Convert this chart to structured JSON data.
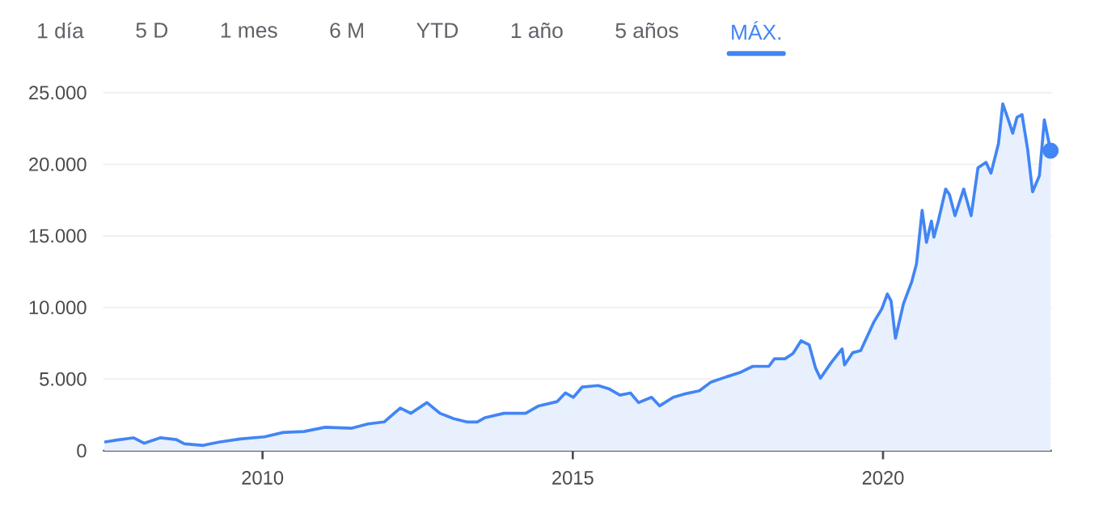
{
  "chart_data": {
    "type": "area",
    "color": "#4285f4",
    "x": [
      2007.45,
      2007.66,
      2007.92,
      2008.09,
      2008.35,
      2008.61,
      2008.74,
      2009.04,
      2009.3,
      2009.64,
      2010.03,
      2010.33,
      2010.67,
      2011.01,
      2011.44,
      2011.7,
      2011.96,
      2012.22,
      2012.39,
      2012.65,
      2012.86,
      2013.08,
      2013.29,
      2013.46,
      2013.59,
      2013.89,
      2014.24,
      2014.45,
      2014.75,
      2014.88,
      2015.01,
      2015.15,
      2015.41,
      2015.58,
      2015.76,
      2015.93,
      2016.06,
      2016.27,
      2016.4,
      2016.62,
      2016.79,
      2017.04,
      2017.22,
      2017.47,
      2017.69,
      2017.9,
      2018.16,
      2018.25,
      2018.42,
      2018.55,
      2018.68,
      2018.81,
      2018.91,
      2018.99,
      2019.17,
      2019.34,
      2019.38,
      2019.51,
      2019.64,
      2019.85,
      2019.98,
      2020.07,
      2020.13,
      2020.2,
      2020.33,
      2020.46,
      2020.54,
      2020.63,
      2020.7,
      2020.78,
      2020.82,
      2020.89,
      2021.01,
      2021.07,
      2021.16,
      2021.3,
      2021.42,
      2021.53,
      2021.66,
      2021.74,
      2021.86,
      2021.93,
      2022.02,
      2022.09,
      2022.16,
      2022.24,
      2022.33,
      2022.41,
      2022.52,
      2022.6,
      2022.7
    ],
    "values": [
      600,
      750,
      900,
      520,
      900,
      780,
      480,
      370,
      600,
      820,
      970,
      1270,
      1340,
      1640,
      1570,
      1870,
      2010,
      2980,
      2610,
      3360,
      2610,
      2240,
      2010,
      2010,
      2310,
      2610,
      2610,
      3130,
      3430,
      4030,
      3730,
      4440,
      4550,
      4330,
      3880,
      4030,
      3360,
      3730,
      3130,
      3730,
      3950,
      4180,
      4770,
      5150,
      5450,
      5890,
      5890,
      6420,
      6420,
      6790,
      7680,
      7390,
      5800,
      5060,
      6180,
      7110,
      5990,
      6840,
      6990,
      8970,
      9900,
      10940,
      10450,
      7850,
      10270,
      11760,
      13060,
      16780,
      14550,
      16030,
      14920,
      16030,
      18270,
      17890,
      16410,
      18270,
      16410,
      19750,
      20130,
      19380,
      21430,
      24220,
      23100,
      22170,
      23290,
      23470,
      21060,
      18080,
      19200,
      23100,
      20950
    ],
    "series": [
      {
        "type": "scatter",
        "color": "#4285f4",
        "x": [
          2022.7
        ],
        "values": [
          20950
        ],
        "marker": "circle"
      }
    ],
    "xlim": [
      2007.43,
      2022.72
    ],
    "ylim": [
      0,
      25000
    ],
    "xticks": [
      2010,
      2015,
      2020
    ],
    "yticks": [
      0,
      {
        "value": 5000,
        "label": "5.000"
      },
      {
        "value": 10000,
        "label": "10.000"
      },
      {
        "value": 15000,
        "label": "15.000"
      },
      {
        "value": 20000,
        "label": "20.000"
      },
      {
        "value": 25000,
        "label": "25.000"
      }
    ],
    "grid": "y",
    "annotations": [
      "1 día",
      "5 D",
      "1 mes",
      "6 M",
      "YTD",
      "1 año",
      "5 años",
      "MÁX."
    ]
  }
}
